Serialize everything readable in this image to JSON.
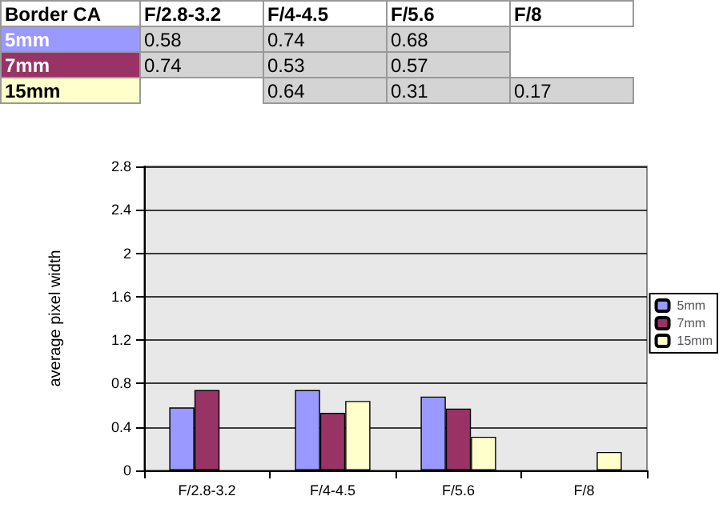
{
  "chart_data": {
    "type": "bar",
    "title": "Border CA",
    "ylabel": "average pixel width",
    "categories": [
      "F/2.8-3.2",
      "F/4-4.5",
      "F/5.6",
      "F/8"
    ],
    "series": [
      {
        "name": "5mm",
        "color": "#9999ff",
        "values": [
          0.58,
          0.74,
          0.68,
          null
        ]
      },
      {
        "name": "7mm",
        "color": "#993366",
        "values": [
          0.74,
          0.53,
          0.57,
          null
        ]
      },
      {
        "name": "15mm",
        "color": "#ffffcc",
        "values": [
          null,
          0.64,
          0.31,
          0.17
        ]
      }
    ],
    "ylim": [
      0,
      2.8
    ],
    "yticks": [
      0,
      0.4,
      0.8,
      1.2,
      1.6,
      2,
      2.4,
      2.8
    ],
    "grid": "y",
    "legend": "right",
    "data_labels": true
  }
}
